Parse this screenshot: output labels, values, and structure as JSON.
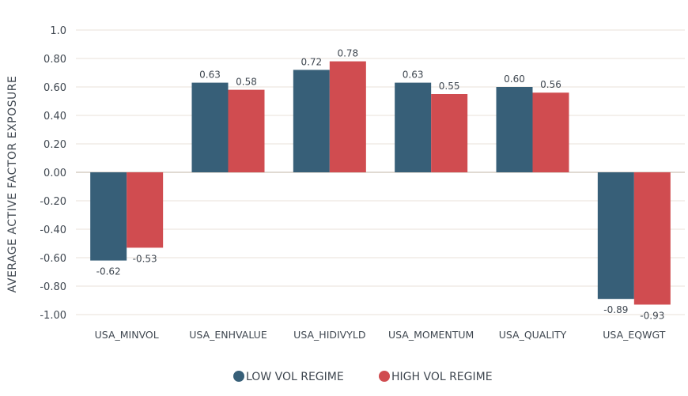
{
  "chart_data": {
    "type": "bar",
    "title": "",
    "xlabel": "",
    "ylabel": "AVERAGE ACTIVE FACTOR EXPOSURE",
    "ylim": [
      -1.0,
      1.0
    ],
    "yticks": [
      1.0,
      0.8,
      0.6,
      0.4,
      0.2,
      0.0,
      -0.2,
      -0.4,
      -0.6,
      -0.8,
      -1.0
    ],
    "ytick_labels": [
      "1.0",
      "0.80",
      "0.60",
      "0.40",
      "0.20",
      "0.00",
      "-0.20",
      "-0.40",
      "-0.60",
      "-0.80",
      "-1.00"
    ],
    "grid": true,
    "legend_position": "bottom-center",
    "categories": [
      "USA_MINVOL",
      "USA_ENHVALUE",
      "USA_HIDIVYLD",
      "USA_MOMENTUM",
      "USA_QUALITY",
      "USA_EQWGT"
    ],
    "series": [
      {
        "name": "LOW VOL REGIME",
        "color": "#375f78",
        "values": [
          -0.62,
          0.63,
          0.72,
          0.63,
          0.6,
          -0.89
        ],
        "labels": [
          "-0.62",
          "0.63",
          "0.72",
          "0.63",
          "0.60",
          "-0.89"
        ]
      },
      {
        "name": "HIGH VOL REGIME",
        "color": "#d04c50",
        "values": [
          -0.53,
          0.58,
          0.78,
          0.55,
          0.56,
          -0.93
        ],
        "labels": [
          "-0.53",
          "0.58",
          "0.78",
          "0.55",
          "0.56",
          "-0.93"
        ]
      }
    ]
  }
}
